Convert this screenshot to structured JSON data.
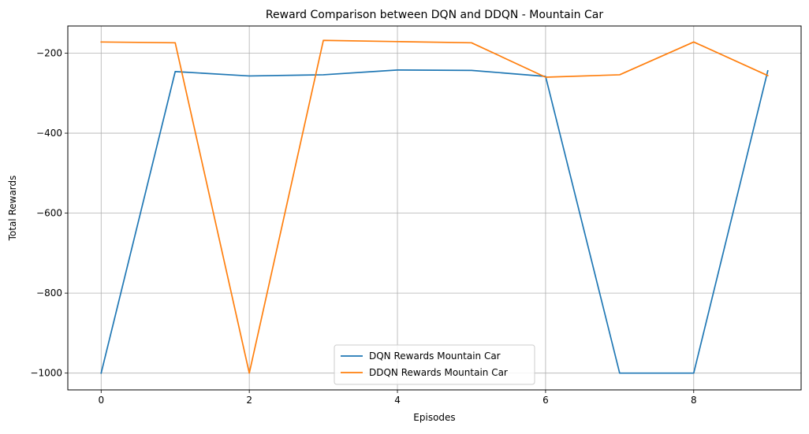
{
  "chart_data": {
    "type": "line",
    "title": "Reward Comparison between DQN and DDQN - Mountain Car",
    "xlabel": "Episodes",
    "ylabel": "Total Rewards",
    "x": [
      0,
      1,
      2,
      3,
      4,
      5,
      6,
      7,
      8,
      9
    ],
    "xlim": [
      -0.45,
      9.45
    ],
    "ylim": [
      -1042,
      -132
    ],
    "xticks": [
      0,
      2,
      4,
      6,
      8
    ],
    "xtick_labels": [
      "0",
      "2",
      "4",
      "6",
      "8"
    ],
    "yticks": [
      -1000,
      -800,
      -600,
      -400,
      -200
    ],
    "ytick_labels": [
      "−1000",
      "−800",
      "−600",
      "−400",
      "−200"
    ],
    "grid": true,
    "legend_position": "lower center",
    "series": [
      {
        "name": "DQN Rewards Mountain Car",
        "color": "#1f77b4",
        "values": [
          -1000,
          -246,
          -257,
          -254,
          -242,
          -243,
          -258,
          -1000,
          -1000,
          -244
        ]
      },
      {
        "name": "DDQN Rewards Mountain Car",
        "color": "#ff7f0e",
        "values": [
          -172,
          -174,
          -1000,
          -168,
          -171,
          -174,
          -260,
          -254,
          -172,
          -256
        ]
      }
    ]
  }
}
